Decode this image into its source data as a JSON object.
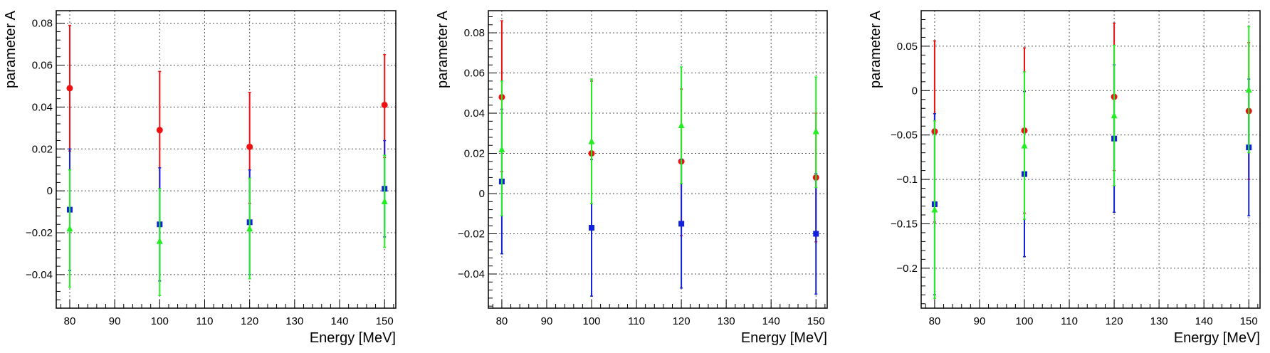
{
  "colors": {
    "red": "#ee1111",
    "green": "#22ee22",
    "blue": "#1122dd",
    "grid": "#555555"
  },
  "chart_data": [
    {
      "type": "scatter",
      "title": "",
      "xlabel": "Energy [MeV]",
      "ylabel": "parameter A",
      "xlim": [
        77,
        152.5
      ],
      "ylim": [
        -0.056,
        0.086
      ],
      "xticks": [
        80,
        90,
        100,
        110,
        120,
        130,
        140,
        150
      ],
      "xtick_labels": [
        "80",
        "90",
        "100",
        "110",
        "120",
        "130",
        "140",
        "150"
      ],
      "yticks": [
        -0.04,
        -0.02,
        0,
        0.02,
        0.04,
        0.06,
        0.08
      ],
      "ytick_labels": [
        "−0.04",
        "−0.02",
        "0",
        "0.02",
        "0.04",
        "0.06",
        "0.08"
      ],
      "grid": true,
      "series": [
        {
          "color": "red",
          "marker": "circle",
          "points": [
            {
              "x": 80,
              "y": 0.049,
              "lo": 0.019,
              "hi": 0.079
            },
            {
              "x": 100,
              "y": 0.029,
              "lo": 0.001,
              "hi": 0.057
            },
            {
              "x": 120,
              "y": 0.021,
              "lo": -0.006,
              "hi": 0.047
            },
            {
              "x": 150,
              "y": 0.041,
              "lo": 0.016,
              "hi": 0.065
            }
          ]
        },
        {
          "color": "blue",
          "marker": "square",
          "points": [
            {
              "x": 80,
              "y": -0.009,
              "lo": -0.038,
              "hi": 0.02
            },
            {
              "x": 100,
              "y": -0.016,
              "lo": -0.043,
              "hi": 0.011
            },
            {
              "x": 120,
              "y": -0.015,
              "lo": -0.04,
              "hi": 0.01
            },
            {
              "x": 150,
              "y": 0.001,
              "lo": -0.022,
              "hi": 0.024
            }
          ]
        },
        {
          "color": "green",
          "marker": "triangle",
          "points": [
            {
              "x": 80,
              "y": -0.018,
              "lo": -0.046,
              "hi": 0.01
            },
            {
              "x": 100,
              "y": -0.024,
              "lo": -0.05,
              "hi": 0.001
            },
            {
              "x": 120,
              "y": -0.018,
              "lo": -0.042,
              "hi": 0.006
            },
            {
              "x": 150,
              "y": -0.005,
              "lo": -0.027,
              "hi": 0.017
            }
          ]
        }
      ]
    },
    {
      "type": "scatter",
      "title": "",
      "xlabel": "Energy [MeV]",
      "ylabel": "parameter A",
      "xlim": [
        77,
        152.5
      ],
      "ylim": [
        -0.057,
        0.091
      ],
      "xticks": [
        80,
        90,
        100,
        110,
        120,
        130,
        140,
        150
      ],
      "xtick_labels": [
        "80",
        "90",
        "100",
        "110",
        "120",
        "130",
        "140",
        "150"
      ],
      "yticks": [
        -0.04,
        -0.02,
        0,
        0.02,
        0.04,
        0.06,
        0.08
      ],
      "ytick_labels": [
        "−0.04",
        "−0.02",
        "0",
        "0.02",
        "0.04",
        "0.06",
        "0.08"
      ],
      "grid": true,
      "series": [
        {
          "color": "red",
          "marker": "circle",
          "points": [
            {
              "x": 80,
              "y": 0.048,
              "lo": 0.011,
              "hi": 0.086
            },
            {
              "x": 100,
              "y": 0.02,
              "lo": -0.016,
              "hi": 0.056
            },
            {
              "x": 120,
              "y": 0.016,
              "lo": -0.021,
              "hi": 0.052
            },
            {
              "x": 150,
              "y": 0.008,
              "lo": -0.024,
              "hi": 0.04
            }
          ]
        },
        {
          "color": "blue",
          "marker": "square",
          "points": [
            {
              "x": 80,
              "y": 0.006,
              "lo": -0.03,
              "hi": 0.042
            },
            {
              "x": 100,
              "y": -0.017,
              "lo": -0.051,
              "hi": 0.017
            },
            {
              "x": 120,
              "y": -0.015,
              "lo": -0.047,
              "hi": 0.017
            },
            {
              "x": 150,
              "y": -0.02,
              "lo": -0.05,
              "hi": 0.01
            }
          ]
        },
        {
          "color": "green",
          "marker": "triangle",
          "points": [
            {
              "x": 80,
              "y": 0.022,
              "lo": -0.011,
              "hi": 0.056
            },
            {
              "x": 100,
              "y": 0.026,
              "lo": -0.005,
              "hi": 0.057
            },
            {
              "x": 120,
              "y": 0.034,
              "lo": 0.005,
              "hi": 0.063
            },
            {
              "x": 150,
              "y": 0.031,
              "lo": 0.003,
              "hi": 0.058
            }
          ]
        }
      ]
    },
    {
      "type": "scatter",
      "title": "",
      "xlabel": "Energy [MeV]",
      "ylabel": "parameter A",
      "xlim": [
        77,
        152.5
      ],
      "ylim": [
        -0.245,
        0.09
      ],
      "xticks": [
        80,
        90,
        100,
        110,
        120,
        130,
        140,
        150
      ],
      "xtick_labels": [
        "80",
        "90",
        "100",
        "110",
        "120",
        "130",
        "140",
        "150"
      ],
      "yticks": [
        -0.2,
        -0.15,
        -0.1,
        -0.05,
        0,
        0.05
      ],
      "ytick_labels": [
        "−0.2",
        "−0.15",
        "−0.1",
        "−0.05",
        "0",
        "0.05"
      ],
      "grid": true,
      "series": [
        {
          "color": "red",
          "marker": "circle",
          "points": [
            {
              "x": 80,
              "y": -0.046,
              "lo": -0.148,
              "hi": 0.056
            },
            {
              "x": 100,
              "y": -0.045,
              "lo": -0.138,
              "hi": 0.048
            },
            {
              "x": 120,
              "y": -0.007,
              "lo": -0.09,
              "hi": 0.076
            },
            {
              "x": 150,
              "y": -0.023,
              "lo": -0.1,
              "hi": 0.054
            }
          ]
        },
        {
          "color": "blue",
          "marker": "square",
          "points": [
            {
              "x": 80,
              "y": -0.128,
              "lo": -0.23,
              "hi": -0.026
            },
            {
              "x": 100,
              "y": -0.094,
              "lo": -0.187,
              "hi": -0.001
            },
            {
              "x": 120,
              "y": -0.054,
              "lo": -0.137,
              "hi": 0.029
            },
            {
              "x": 150,
              "y": -0.064,
              "lo": -0.141,
              "hi": 0.013
            }
          ]
        },
        {
          "color": "green",
          "marker": "triangle",
          "points": [
            {
              "x": 80,
              "y": -0.134,
              "lo": -0.234,
              "hi": -0.034
            },
            {
              "x": 100,
              "y": -0.062,
              "lo": -0.145,
              "hi": 0.021
            },
            {
              "x": 120,
              "y": -0.028,
              "lo": -0.107,
              "hi": 0.051
            },
            {
              "x": 150,
              "y": 0.001,
              "lo": -0.07,
              "hi": 0.072
            }
          ]
        }
      ]
    }
  ]
}
